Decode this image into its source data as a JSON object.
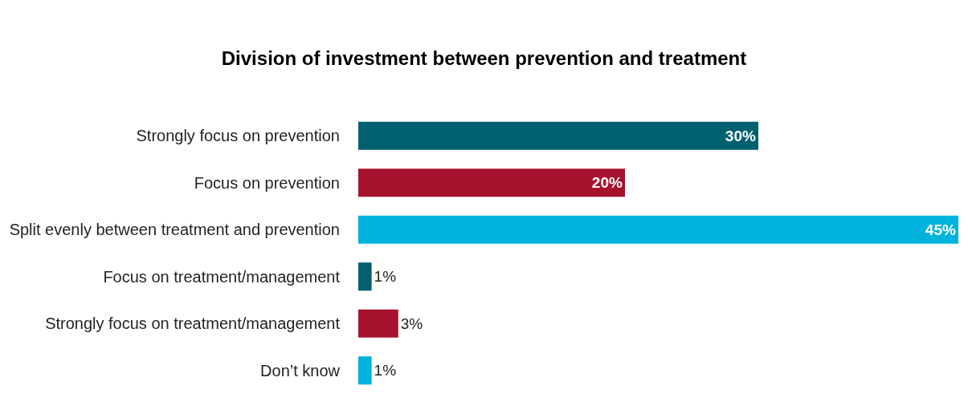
{
  "chart_data": {
    "type": "bar",
    "orientation": "horizontal",
    "title": "Division of investment between prevention and treatment",
    "categories": [
      "Strongly focus on prevention",
      "Focus on prevention",
      "Split evenly between treatment and prevention",
      "Focus on treatment/management",
      "Strongly focus on treatment/management",
      "Don’t know"
    ],
    "values": [
      30,
      20,
      45,
      1,
      3,
      1
    ],
    "value_labels": [
      "30%",
      "20%",
      "45%",
      "1%",
      "3%",
      "1%"
    ],
    "colors": [
      "#00606f",
      "#a6122d",
      "#00b2dc",
      "#00606f",
      "#a6122d",
      "#00b2dc"
    ],
    "legend": false
  }
}
